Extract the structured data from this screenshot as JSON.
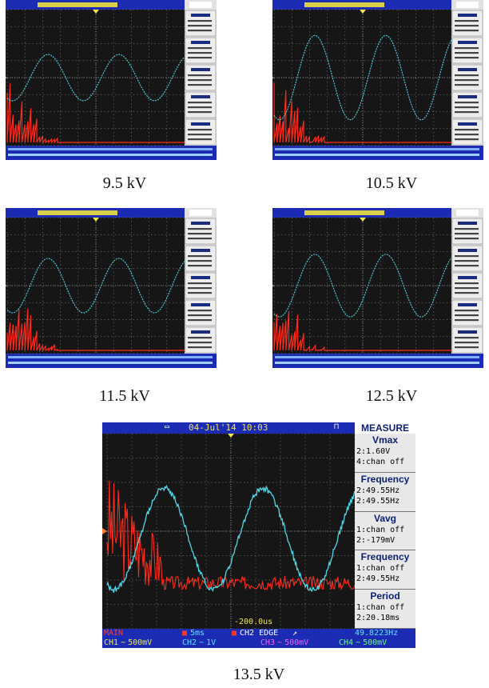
{
  "panels": [
    {
      "caption": "9.5 kV",
      "sine_amplitude_fraction": 0.34
    },
    {
      "caption": "10.5 kV",
      "sine_amplitude_fraction": 0.62
    },
    {
      "caption": "11.5 kV",
      "sine_amplitude_fraction": 0.4
    },
    {
      "caption": "12.5 kV",
      "sine_amplitude_fraction": 0.46
    }
  ],
  "main_panel": {
    "caption": "13.5 kV",
    "header": {
      "date_time": "04-Jul'14 10:03",
      "measure_title": "MEASURE"
    },
    "measurements": [
      {
        "title": "Vmax",
        "lines": [
          "2:1.60V",
          "4:chan off"
        ]
      },
      {
        "title": "Frequency",
        "lines": [
          "2:49.55Hz",
          "2:49.55Hz"
        ]
      },
      {
        "title": "Vavg",
        "lines": [
          "1:chan off",
          "2:-179mV"
        ]
      },
      {
        "title": "Frequency",
        "lines": [
          "1:chan off",
          "2:49.55Hz"
        ]
      },
      {
        "title": "Period",
        "lines": [
          "1:chan off",
          "2:20.18ms"
        ]
      }
    ],
    "trigger_offset": "-200.0us",
    "status": {
      "mode": "MAIN",
      "timebase": "5ms",
      "trigger": "CH2 EDGE",
      "trigger_slope": "↗",
      "frequency": "49.8223Hz"
    },
    "channels": [
      {
        "label": "CH1",
        "value": "500mV",
        "coupling": "~",
        "color": "#f2e84a"
      },
      {
        "label": "CH2",
        "value": "1V",
        "coupling": "~",
        "color": "#5fe4ff"
      },
      {
        "label": "CH3",
        "value": "500mV",
        "coupling": "~",
        "color": "#ff5cf2"
      },
      {
        "label": "CH4",
        "value": "500mV",
        "coupling": "~",
        "color": "#6dff6d"
      }
    ]
  },
  "colors": {
    "signal_cyan": "#4fd6e6",
    "spectrum_red": "#ff2a1a",
    "grid": "#6a6a6a",
    "bar_blue": "#1b2bb4"
  }
}
